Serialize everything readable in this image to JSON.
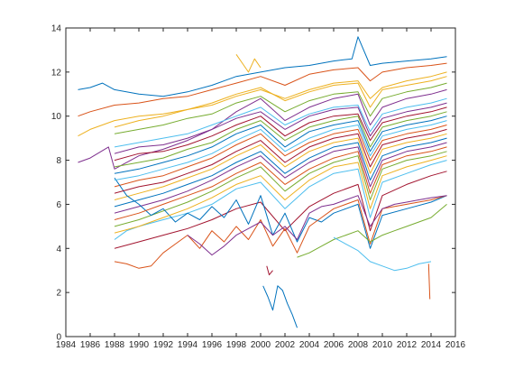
{
  "chart_data": {
    "type": "line",
    "title": "",
    "xlabel": "",
    "ylabel": "",
    "xlim": [
      1984,
      2016
    ],
    "ylim": [
      0,
      14
    ],
    "x_ticks": [
      1984,
      1986,
      1988,
      1990,
      1992,
      1994,
      1996,
      1998,
      2000,
      2002,
      2004,
      2006,
      2008,
      2010,
      2012,
      2014,
      2016
    ],
    "y_ticks": [
      0,
      2,
      4,
      6,
      8,
      10,
      12,
      14
    ],
    "grid": false,
    "legend": "none",
    "colors": [
      "#0072BD",
      "#D95319",
      "#EDB120",
      "#7E2F8E",
      "#77AC30",
      "#4DBEEE",
      "#A2142F"
    ],
    "series": [
      {
        "x": [
          1985,
          1986,
          1987,
          1988,
          1990,
          1992,
          1994,
          1996,
          1998,
          2000,
          2002,
          2004,
          2006,
          2007.5,
          2008,
          2009,
          2010,
          2012,
          2014,
          2015.3
        ],
        "values": [
          11.2,
          11.3,
          11.5,
          11.2,
          11.0,
          10.9,
          11.1,
          11.4,
          11.8,
          12.0,
          12.2,
          12.3,
          12.5,
          12.6,
          13.6,
          12.3,
          12.4,
          12.5,
          12.6,
          12.7
        ]
      },
      {
        "x": [
          1985,
          1986,
          1988,
          1990,
          1992,
          1994,
          1996,
          1998,
          2000,
          2002,
          2004,
          2006,
          2008,
          2009,
          2010,
          2012,
          2014,
          2015.3
        ],
        "values": [
          10.0,
          10.2,
          10.5,
          10.6,
          10.8,
          10.9,
          11.2,
          11.5,
          11.8,
          11.4,
          11.9,
          12.1,
          12.2,
          11.6,
          12.0,
          12.2,
          12.3,
          12.4
        ]
      },
      {
        "x": [
          1985,
          1986,
          1988,
          1990,
          1992,
          1994,
          1996,
          1998,
          2000,
          2002,
          2004,
          2006,
          2008,
          2009,
          2010,
          2012,
          2014,
          2015.3
        ],
        "values": [
          9.1,
          9.4,
          9.8,
          10.0,
          10.1,
          10.3,
          10.5,
          10.9,
          11.2,
          10.8,
          11.2,
          11.5,
          11.6,
          10.8,
          11.3,
          11.6,
          11.8,
          12.0
        ]
      },
      {
        "x": [
          1985,
          1986,
          1987.5,
          1988,
          1990,
          1992,
          1994,
          1996,
          1998,
          2000,
          2002,
          2004,
          2006,
          2008,
          2009,
          2010,
          2012,
          2014,
          2015.3
        ],
        "values": [
          7.9,
          8.1,
          8.6,
          7.6,
          8.2,
          8.5,
          8.9,
          9.4,
          10.2,
          10.8,
          9.8,
          10.4,
          10.8,
          11.0,
          9.6,
          10.4,
          10.8,
          11.0,
          11.2
        ]
      },
      {
        "x": [
          1988,
          1990,
          1992,
          1994,
          1996,
          1998,
          2000,
          2002,
          2004,
          2006,
          2008,
          2009,
          2010,
          2012,
          2014,
          2015.3
        ],
        "values": [
          9.2,
          9.4,
          9.6,
          9.9,
          10.1,
          10.6,
          10.9,
          10.2,
          10.7,
          11.0,
          11.1,
          10.0,
          10.8,
          11.1,
          11.3,
          11.5
        ]
      },
      {
        "x": [
          1988,
          1990,
          1992,
          1994,
          1996,
          1998,
          2000,
          2002,
          2004,
          2006,
          2008,
          2009,
          2010,
          2012,
          2014,
          2015.3
        ],
        "values": [
          8.6,
          8.8,
          9.0,
          9.2,
          9.6,
          10.0,
          10.4,
          9.6,
          10.1,
          10.4,
          10.5,
          9.3,
          10.1,
          10.4,
          10.6,
          10.8
        ]
      },
      {
        "x": [
          1988,
          1990,
          1992,
          1994,
          1996,
          1998,
          2000,
          2002,
          2004,
          2006,
          2008,
          2009,
          2010,
          2012,
          2014,
          2015.3
        ],
        "values": [
          8.0,
          8.3,
          8.4,
          8.7,
          9.1,
          9.6,
          10.0,
          9.1,
          9.7,
          10.0,
          10.1,
          8.9,
          9.7,
          10.0,
          10.2,
          10.4
        ]
      },
      {
        "x": [
          1988,
          1990,
          1992,
          1994,
          1996,
          1998,
          2000,
          2002,
          2004,
          2006,
          2008,
          2009,
          2010,
          2012,
          2014,
          2015.3
        ],
        "values": [
          7.4,
          7.6,
          7.9,
          8.2,
          8.6,
          9.2,
          9.6,
          8.6,
          9.3,
          9.6,
          9.8,
          8.4,
          9.3,
          9.6,
          9.8,
          10.0
        ]
      },
      {
        "x": [
          1988,
          1990,
          1992,
          1994,
          1996,
          1998,
          2000,
          2002,
          2004,
          2006,
          2008,
          2009,
          2010,
          2012,
          2014,
          2015.3
        ],
        "values": [
          6.8,
          7.1,
          7.3,
          7.7,
          8.1,
          8.7,
          9.2,
          8.2,
          8.8,
          9.2,
          9.4,
          8.0,
          8.9,
          9.2,
          9.4,
          9.6
        ]
      },
      {
        "x": [
          1988,
          1990,
          1992,
          1994,
          1996,
          1998,
          2000,
          2002,
          2004,
          2006,
          2008,
          2009,
          2010,
          2012,
          2014,
          2015.3
        ],
        "values": [
          6.2,
          6.5,
          6.8,
          7.2,
          7.6,
          8.2,
          8.7,
          7.7,
          8.4,
          8.8,
          9.0,
          7.4,
          8.5,
          8.8,
          9.0,
          9.2
        ]
      },
      {
        "x": [
          1988,
          1990,
          1992,
          1994,
          1996,
          1998,
          2000,
          2002,
          2004,
          2006,
          2008,
          2009,
          2010,
          2012,
          2014,
          2015.3
        ],
        "values": [
          5.6,
          5.9,
          6.2,
          6.6,
          7.1,
          7.7,
          8.2,
          7.2,
          7.9,
          8.4,
          8.6,
          6.8,
          8.0,
          8.4,
          8.6,
          8.8
        ]
      },
      {
        "x": [
          1988,
          1990,
          1992,
          1994,
          1996,
          1998,
          2000,
          2002,
          2004,
          2006,
          2008,
          2009,
          2010,
          2012,
          2014,
          2015.3
        ],
        "values": [
          5.0,
          5.3,
          5.7,
          6.1,
          6.6,
          7.2,
          7.7,
          6.6,
          7.4,
          7.9,
          8.2,
          6.2,
          7.6,
          8.0,
          8.2,
          8.4
        ]
      },
      {
        "x": [
          1988,
          1989,
          1990,
          1992,
          1994,
          1996,
          1998,
          2000,
          2002,
          2004,
          2006,
          2008,
          2009,
          2010,
          2012,
          2014,
          2015.3
        ],
        "values": [
          4.4,
          4.8,
          5.0,
          5.3,
          5.6,
          6.0,
          6.7,
          7.0,
          5.8,
          6.8,
          7.4,
          7.6,
          5.4,
          7.0,
          7.4,
          7.8,
          8.0
        ]
      },
      {
        "x": [
          1988,
          1990,
          1992,
          1994,
          1996,
          1998,
          2000,
          2002,
          2004,
          2006,
          2008,
          2009,
          2010,
          2012,
          2014,
          2015.3
        ],
        "values": [
          4.0,
          4.3,
          4.6,
          4.9,
          5.3,
          5.8,
          6.1,
          4.8,
          5.9,
          6.5,
          6.9,
          4.8,
          6.4,
          6.9,
          7.3,
          7.5
        ]
      },
      {
        "x": [
          1988,
          1989,
          1990,
          1991,
          1992,
          1993,
          1994,
          1995,
          1996,
          1997,
          1998,
          1999,
          2000,
          2001,
          2002,
          2003,
          2004,
          2005,
          2006,
          2007,
          2008,
          2009,
          2010,
          2012,
          2014,
          2015.3
        ],
        "values": [
          7.2,
          6.4,
          6.0,
          5.5,
          5.8,
          5.2,
          5.6,
          5.3,
          5.9,
          5.4,
          6.2,
          5.1,
          6.4,
          4.6,
          5.6,
          4.3,
          5.4,
          5.2,
          5.6,
          5.8,
          6.0,
          4.0,
          5.5,
          5.8,
          6.1,
          6.4
        ]
      },
      {
        "x": [
          1988,
          1989,
          1990,
          1991,
          1992,
          1993,
          1994,
          1995,
          1996,
          1997,
          1998,
          1999,
          2000,
          2001,
          2002,
          2003,
          2004,
          2005,
          2006,
          2007,
          2008,
          2009,
          2010,
          2012,
          2014,
          2015.3
        ],
        "values": [
          3.4,
          3.3,
          3.1,
          3.2,
          3.8,
          4.2,
          4.6,
          4.0,
          4.8,
          4.3,
          5.0,
          4.4,
          5.3,
          4.1,
          4.9,
          3.8,
          5.0,
          5.4,
          5.8,
          6.0,
          6.2,
          4.2,
          5.8,
          6.0,
          6.2,
          6.4
        ]
      },
      {
        "x": [
          1988,
          1990,
          1992,
          1994,
          1996,
          1998,
          2000,
          2002,
          2004,
          2006,
          2008,
          2009,
          2010,
          2012,
          2014,
          2015.3
        ],
        "values": [
          9.5,
          9.8,
          10.0,
          10.3,
          10.6,
          11.0,
          11.3,
          10.7,
          11.1,
          11.4,
          11.5,
          10.4,
          11.2,
          11.4,
          11.6,
          11.8
        ]
      },
      {
        "x": [
          1988,
          1990,
          1992,
          1994,
          1996,
          1998,
          2000,
          2002,
          2004,
          2006,
          2008,
          2009,
          2010,
          2012,
          2014,
          2015.3
        ],
        "values": [
          8.3,
          8.6,
          8.7,
          9.0,
          9.4,
          9.9,
          10.2,
          9.4,
          10.0,
          10.3,
          10.4,
          9.1,
          9.9,
          10.2,
          10.4,
          10.6
        ]
      },
      {
        "x": [
          1988,
          1990,
          1992,
          1994,
          1996,
          1998,
          2000,
          2002,
          2004,
          2006,
          2008,
          2009,
          2010,
          2012,
          2014,
          2015.3
        ],
        "values": [
          7.7,
          7.9,
          8.1,
          8.5,
          8.8,
          9.4,
          9.8,
          8.9,
          9.5,
          9.8,
          10.0,
          8.6,
          9.5,
          9.8,
          10.0,
          10.2
        ]
      },
      {
        "x": [
          1988,
          1990,
          1992,
          1994,
          1996,
          1998,
          2000,
          2002,
          2004,
          2006,
          2008,
          2009,
          2010,
          2012,
          2014,
          2015.3
        ],
        "values": [
          7.1,
          7.3,
          7.6,
          7.9,
          8.3,
          8.9,
          9.4,
          8.4,
          9.0,
          9.4,
          9.6,
          8.2,
          9.1,
          9.4,
          9.6,
          9.8
        ]
      },
      {
        "x": [
          1988,
          1990,
          1992,
          1994,
          1996,
          1998,
          2000,
          2002,
          2004,
          2006,
          2008,
          2009,
          2010,
          2012,
          2014,
          2015.3
        ],
        "values": [
          6.5,
          6.8,
          7.0,
          7.4,
          7.8,
          8.4,
          8.9,
          7.9,
          8.6,
          9.0,
          9.2,
          7.7,
          8.7,
          9.0,
          9.2,
          9.4
        ]
      },
      {
        "x": [
          1988,
          1990,
          1992,
          1994,
          1996,
          1998,
          2000,
          2002,
          2004,
          2006,
          2008,
          2009,
          2010,
          2012,
          2014,
          2015.3
        ],
        "values": [
          5.9,
          6.2,
          6.5,
          6.9,
          7.3,
          7.9,
          8.4,
          7.4,
          8.1,
          8.6,
          8.8,
          7.1,
          8.2,
          8.6,
          8.8,
          9.0
        ]
      },
      {
        "x": [
          1988,
          1990,
          1992,
          1994,
          1996,
          1998,
          2000,
          2002,
          2004,
          2006,
          2008,
          2009,
          2010,
          2012,
          2014,
          2015.3
        ],
        "values": [
          5.3,
          5.6,
          6.0,
          6.4,
          6.8,
          7.4,
          7.9,
          6.9,
          7.6,
          8.1,
          8.4,
          6.5,
          7.8,
          8.2,
          8.4,
          8.6
        ]
      },
      {
        "x": [
          1988,
          1990,
          1992,
          1994,
          1996,
          1998,
          2000,
          2002,
          2004,
          2006,
          2008,
          2009,
          2010,
          2012,
          2014,
          2015.3
        ],
        "values": [
          4.7,
          5.0,
          5.4,
          5.8,
          6.3,
          6.9,
          7.3,
          6.2,
          7.1,
          7.7,
          7.9,
          5.8,
          7.3,
          7.7,
          8.0,
          8.2
        ]
      },
      {
        "x": [
          1994,
          1995,
          1996,
          1997,
          1998,
          1999,
          2000,
          2001,
          2002,
          2003,
          2004,
          2005,
          2006,
          2007,
          2008,
          2009,
          2010,
          2011,
          2012,
          2013,
          2014,
          2015.3
        ],
        "values": [
          4.6,
          4.2,
          3.7,
          4.1,
          4.6,
          4.9,
          5.2,
          4.6,
          5.0,
          4.4,
          5.6,
          5.9,
          6.0,
          6.2,
          6.4,
          5.0,
          5.8,
          6.0,
          6.1,
          6.2,
          6.3,
          6.4
        ]
      },
      {
        "x": [
          2003,
          2004,
          2005,
          2006,
          2007,
          2008,
          2009,
          2010,
          2011,
          2012,
          2013,
          2014,
          2015.3
        ],
        "values": [
          3.6,
          3.8,
          4.1,
          4.4,
          4.6,
          4.8,
          4.3,
          4.6,
          4.8,
          5.0,
          5.2,
          5.4,
          6.0
        ]
      },
      {
        "x": [
          2006,
          2007,
          2008,
          2009,
          2010,
          2011,
          2012,
          2013,
          2014
        ],
        "values": [
          4.5,
          4.2,
          3.9,
          3.4,
          3.2,
          3.0,
          3.1,
          3.3,
          3.4
        ]
      },
      {
        "x": [
          2000.5,
          2000.7,
          2001
        ],
        "values": [
          3.2,
          2.8,
          3.0
        ]
      },
      {
        "x": [
          2000.2,
          2000.6,
          2001,
          2001.4,
          2001.8,
          2002.2,
          2002.6,
          2003
        ],
        "values": [
          2.3,
          1.8,
          1.2,
          2.3,
          2.1,
          1.5,
          1.0,
          0.4
        ]
      },
      {
        "x": [
          2013.8,
          2013.85,
          2013.9
        ],
        "values": [
          3.3,
          2.5,
          1.7
        ]
      },
      {
        "x": [
          1998,
          1998.5,
          1999,
          1999.5,
          2000
        ],
        "values": [
          12.8,
          12.4,
          12.0,
          12.6,
          12.2
        ]
      }
    ]
  }
}
